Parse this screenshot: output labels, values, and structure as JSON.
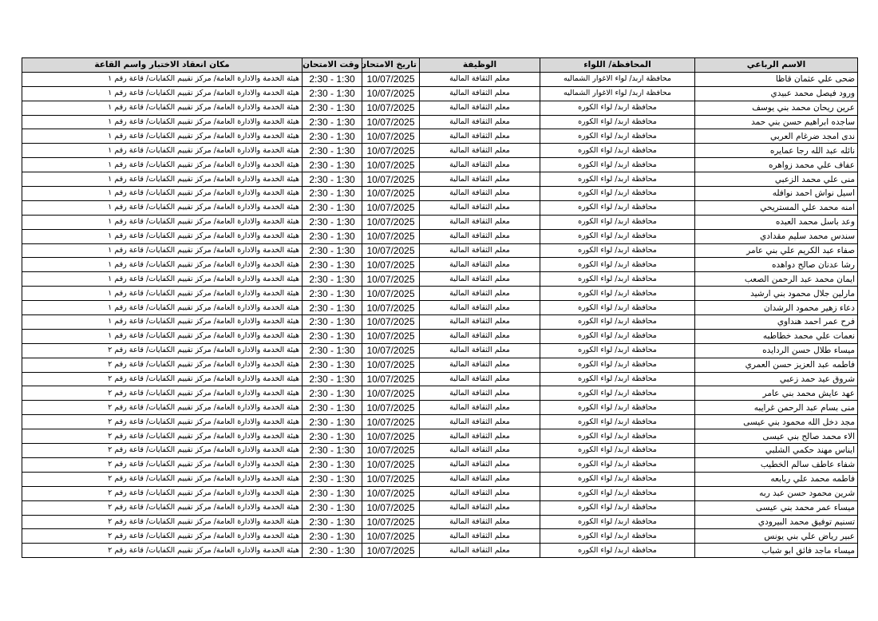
{
  "table": {
    "headers": [
      "الاسم الرباعي",
      "المحافظة/ اللواء",
      "الوظيفة",
      "تاريخ الامتحان",
      "وقت الامتحان",
      "مكان انعقاد الاختبار واسم القاعة"
    ],
    "rows": [
      [
        "ضحى علي عثمان قاظا",
        "محافظة اربد/ لواء الاغوار الشماليه",
        "معلم الثقافة المالية",
        "10/07/2025",
        "2:30 - 1:30",
        "هيئة الخدمة والادارة العامة/ مركز تقييم الكفايات/ قاعة رقم ١"
      ],
      [
        "ورود فيصل محمد عبيدي",
        "محافظة اربد/ لواء الاغوار الشماليه",
        "معلم الثقافة المالية",
        "10/07/2025",
        "2:30 - 1:30",
        "هيئة الخدمة والادارة العامة/ مركز تقييم الكفايات/ قاعة رقم ١"
      ],
      [
        "عرين ريحان محمد بني يوسف",
        "محافظة اربد/ لواء الكوره",
        "معلم الثقافة المالية",
        "10/07/2025",
        "2:30 - 1:30",
        "هيئة الخدمة والادارة العامة/ مركز تقييم الكفايات/ قاعة رقم ١"
      ],
      [
        "ساجده ابراهيم حسن بني حمد",
        "محافظة اربد/ لواء الكوره",
        "معلم الثقافة المالية",
        "10/07/2025",
        "2:30 - 1:30",
        "هيئة الخدمة والادارة العامة/ مركز تقييم الكفايات/ قاعة رقم ١"
      ],
      [
        "ندى امجد ضرغام العربي",
        "محافظة اربد/ لواء الكوره",
        "معلم الثقافة المالية",
        "10/07/2025",
        "2:30 - 1:30",
        "هيئة الخدمة والادارة العامة/ مركز تقييم الكفايات/ قاعة رقم ١"
      ],
      [
        "نائله عبد الله رجا عمايره",
        "محافظة اربد/ لواء الكوره",
        "معلم الثقافة المالية",
        "10/07/2025",
        "2:30 - 1:30",
        "هيئة الخدمة والادارة العامة/ مركز تقييم الكفايات/ قاعة رقم ١"
      ],
      [
        "عفاف علي محمد زواهره",
        "محافظة اربد/ لواء الكوره",
        "معلم الثقافة المالية",
        "10/07/2025",
        "2:30 - 1:30",
        "هيئة الخدمة والادارة العامة/ مركز تقييم الكفايات/ قاعة رقم ١"
      ],
      [
        "منى علي محمد الزعبي",
        "محافظة اربد/ لواء الكوره",
        "معلم الثقافة المالية",
        "10/07/2025",
        "2:30 - 1:30",
        "هيئة الخدمة والادارة العامة/ مركز تقييم الكفايات/ قاعة رقم ١"
      ],
      [
        "اسيل نواش احمد نوافله",
        "محافظة اربد/ لواء الكوره",
        "معلم الثقافة المالية",
        "10/07/2025",
        "2:30 - 1:30",
        "هيئة الخدمة والادارة العامة/ مركز تقييم الكفايات/ قاعة رقم ١"
      ],
      [
        "امنه محمد علي المستريحي",
        "محافظة اربد/ لواء الكوره",
        "معلم الثقافة المالية",
        "10/07/2025",
        "2:30 - 1:30",
        "هيئة الخدمة والادارة العامة/ مركز تقييم الكفايات/ قاعة رقم ١"
      ],
      [
        "وعد باسل محمد العبده",
        "محافظة اربد/ لواء الكوره",
        "معلم الثقافة المالية",
        "10/07/2025",
        "2:30 - 1:30",
        "هيئة الخدمة والادارة العامة/ مركز تقييم الكفايات/ قاعة رقم ١"
      ],
      [
        "سندس محمد سليم مقدادي",
        "محافظة اربد/ لواء الكوره",
        "معلم الثقافة المالية",
        "10/07/2025",
        "2:30 - 1:30",
        "هيئة الخدمة والادارة العامة/ مركز تقييم الكفايات/ قاعة رقم ١"
      ],
      [
        "صفاء عبد الكريم علي بني عامر",
        "محافظة اربد/ لواء الكوره",
        "معلم الثقافة المالية",
        "10/07/2025",
        "2:30 - 1:30",
        "هيئة الخدمة والادارة العامة/ مركز تقييم الكفايات/ قاعة رقم ١"
      ],
      [
        "رشا عدنان صالح دواهده",
        "محافظة اربد/ لواء الكوره",
        "معلم الثقافة المالية",
        "10/07/2025",
        "2:30 - 1:30",
        "هيئة الخدمة والادارة العامة/ مركز تقييم الكفايات/ قاعة رقم ١"
      ],
      [
        "ايمان محمد عبد الرحمن الصعب",
        "محافظة اربد/ لواء الكوره",
        "معلم الثقافة المالية",
        "10/07/2025",
        "2:30 - 1:30",
        "هيئة الخدمة والادارة العامة/ مركز تقييم الكفايات/ قاعة رقم ١"
      ],
      [
        "مارلين جلال محمود بني ارشيد",
        "محافظة اربد/ لواء الكوره",
        "معلم الثقافة المالية",
        "10/07/2025",
        "2:30 - 1:30",
        "هيئة الخدمة والادارة العامة/ مركز تقييم الكفايات/ قاعة رقم ١"
      ],
      [
        "دعاء زهير محمود الرشدان",
        "محافظة اربد/ لواء الكوره",
        "معلم الثقافة المالية",
        "10/07/2025",
        "2:30 - 1:30",
        "هيئة الخدمة والادارة العامة/ مركز تقييم الكفايات/ قاعة رقم ١"
      ],
      [
        "فرح عمر احمد هنداوي",
        "محافظة اربد/ لواء الكوره",
        "معلم الثقافة المالية",
        "10/07/2025",
        "2:30 - 1:30",
        "هيئة الخدمة والادارة العامة/ مركز تقييم الكفايات/ قاعة رقم ١"
      ],
      [
        "نعمات علي محمد خطاطبه",
        "محافظة اربد/ لواء الكوره",
        "معلم الثقافة المالية",
        "10/07/2025",
        "2:30 - 1:30",
        "هيئة الخدمة والادارة العامة/ مركز تقييم الكفايات/ قاعة رقم ١"
      ],
      [
        "ميساء طلال حسن الردايده",
        "محافظة اربد/ لواء الكوره",
        "معلم الثقافة المالية",
        "10/07/2025",
        "2:30 - 1:30",
        "هيئة الخدمة والادارة العامة/ مركز تقييم الكفايات/ قاعة رقم ٢"
      ],
      [
        "فاطمه عبد العزيز حسن العمري",
        "محافظة اربد/ لواء الكوره",
        "معلم الثقافة المالية",
        "10/07/2025",
        "2:30 - 1:30",
        "هيئة الخدمة والادارة العامة/ مركز تقييم الكفايات/ قاعة رقم ٢"
      ],
      [
        "شروق عيد حمد زعبي",
        "محافظة اربد/ لواء الكوره",
        "معلم الثقافة المالية",
        "10/07/2025",
        "2:30 - 1:30",
        "هيئة الخدمة والادارة العامة/ مركز تقييم الكفايات/ قاعة رقم ٢"
      ],
      [
        "عهد عايش محمد بني عامر",
        "محافظة اربد/ لواء الكوره",
        "معلم الثقافة المالية",
        "10/07/2025",
        "2:30 - 1:30",
        "هيئة الخدمة والادارة العامة/ مركز تقييم الكفايات/ قاعة رقم ٢"
      ],
      [
        "منى بسام عبد الرحمن غرايبه",
        "محافظة اربد/ لواء الكوره",
        "معلم الثقافة المالية",
        "10/07/2025",
        "2:30 - 1:30",
        "هيئة الخدمة والادارة العامة/ مركز تقييم الكفايات/ قاعة رقم ٢"
      ],
      [
        "مجد دخل الله محمود بني عيسى",
        "محافظة اربد/ لواء الكوره",
        "معلم الثقافة المالية",
        "10/07/2025",
        "2:30 - 1:30",
        "هيئة الخدمة والادارة العامة/ مركز تقييم الكفايات/ قاعة رقم ٢"
      ],
      [
        "الاء محمد صالح بني عيسى",
        "محافظة اربد/ لواء الكوره",
        "معلم الثقافة المالية",
        "10/07/2025",
        "2:30 - 1:30",
        "هيئة الخدمة والادارة العامة/ مركز تقييم الكفايات/ قاعة رقم ٢"
      ],
      [
        "ايناس مهند حكمي الشلبي",
        "محافظة اربد/ لواء الكوره",
        "معلم الثقافة المالية",
        "10/07/2025",
        "2:30 - 1:30",
        "هيئة الخدمة والادارة العامة/ مركز تقييم الكفايات/ قاعة رقم ٢"
      ],
      [
        "شفاء عاطف سالم الخطيب",
        "محافظة اربد/ لواء الكوره",
        "معلم الثقافة المالية",
        "10/07/2025",
        "2:30 - 1:30",
        "هيئة الخدمة والادارة العامة/ مركز تقييم الكفايات/ قاعة رقم ٢"
      ],
      [
        "فاطمه محمد علي ربابعه",
        "محافظة اربد/ لواء الكوره",
        "معلم الثقافة المالية",
        "10/07/2025",
        "2:30 - 1:30",
        "هيئة الخدمة والادارة العامة/ مركز تقييم الكفايات/ قاعة رقم ٢"
      ],
      [
        "شرين محمود حسن عبد ربه",
        "محافظة اربد/ لواء الكوره",
        "معلم الثقافة المالية",
        "10/07/2025",
        "2:30 - 1:30",
        "هيئة الخدمة والادارة العامة/ مركز تقييم الكفايات/ قاعة رقم ٢"
      ],
      [
        "ميساء عمر محمد بني عيسى",
        "محافظة اربد/ لواء الكوره",
        "معلم الثقافة المالية",
        "10/07/2025",
        "2:30 - 1:30",
        "هيئة الخدمة والادارة العامة/ مركز تقييم الكفايات/ قاعة رقم ٢"
      ],
      [
        "تسنيم توفيق محمد البيرودي",
        "محافظة اربد/ لواء الكوره",
        "معلم الثقافة المالية",
        "10/07/2025",
        "2:30 - 1:30",
        "هيئة الخدمة والادارة العامة/ مركز تقييم الكفايات/ قاعة رقم ٢"
      ],
      [
        "عبير رياض علي بني يونس",
        "محافظة اربد/ لواء الكوره",
        "معلم الثقافة المالية",
        "10/07/2025",
        "2:30 - 1:30",
        "هيئة الخدمة والادارة العامة/ مركز تقييم الكفايات/ قاعة رقم ٢"
      ],
      [
        "ميساء ماجد فائق ابو شباب",
        "محافظة اربد/ لواء الكوره",
        "معلم الثقافة المالية",
        "10/07/2025",
        "2:30 - 1:30",
        "هيئة الخدمة والادارة العامة/ مركز تقييم الكفايات/ قاعة رقم ٢"
      ]
    ]
  }
}
